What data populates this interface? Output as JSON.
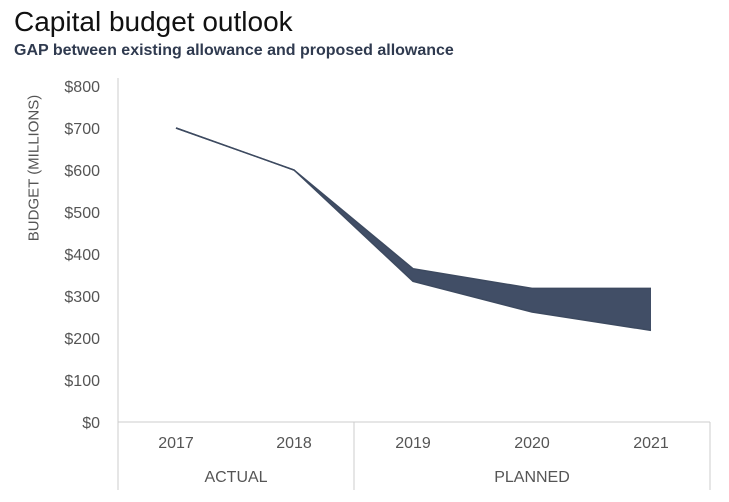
{
  "chart_data": {
    "type": "area",
    "title": "Capital budget outlook",
    "subtitle": "GAP between existing allowance and proposed allowance",
    "xlabel": "",
    "ylabel": "BUDGET (MILLIONS)",
    "categories": [
      "2017",
      "2018",
      "2019",
      "2020",
      "2021"
    ],
    "ylim": [
      0,
      800
    ],
    "yticks": [
      "$0",
      "$100",
      "$200",
      "$300",
      "$400",
      "$500",
      "$600",
      "$700",
      "$800"
    ],
    "ytick_values": [
      0,
      100,
      200,
      300,
      400,
      500,
      600,
      700,
      800
    ],
    "series": [
      {
        "name": "Existing allowance",
        "values": [
          700,
          600,
          365,
          318,
          318
        ]
      },
      {
        "name": "Proposed allowance",
        "values": [
          700,
          600,
          335,
          262,
          218
        ]
      }
    ],
    "groups": [
      {
        "label": "ACTUAL",
        "categories": [
          "2017",
          "2018"
        ]
      },
      {
        "label": "PLANNED",
        "categories": [
          "2019",
          "2020",
          "2021"
        ]
      }
    ],
    "colors": {
      "gap_fill": "#414e66",
      "line": "#3d4a60",
      "axis": "#cccccc",
      "text": "#555555"
    }
  }
}
